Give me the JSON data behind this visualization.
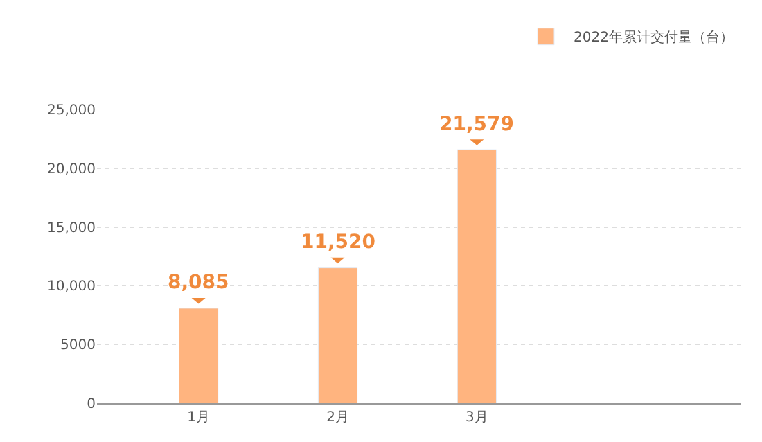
{
  "chart_data": {
    "type": "bar",
    "categories": [
      "1月",
      "2月",
      "3月"
    ],
    "series": [
      {
        "name": "2022年累计交付量（台）",
        "color": "#ffb47f",
        "values": [
          8085,
          11520,
          21579
        ],
        "value_labels": [
          "8,085",
          "11,520",
          "21,579"
        ]
      }
    ],
    "ylim": [
      0,
      25000
    ],
    "yticks": [
      0,
      {
        "value": 5000,
        "label": "5000"
      },
      {
        "value": 10000,
        "label": "10,000"
      },
      {
        "value": 15000,
        "label": "15,000"
      },
      {
        "value": 20000,
        "label": "20,000"
      },
      {
        "value": 25000,
        "label": "25,000"
      }
    ],
    "grid": "y",
    "legend": "top right"
  }
}
